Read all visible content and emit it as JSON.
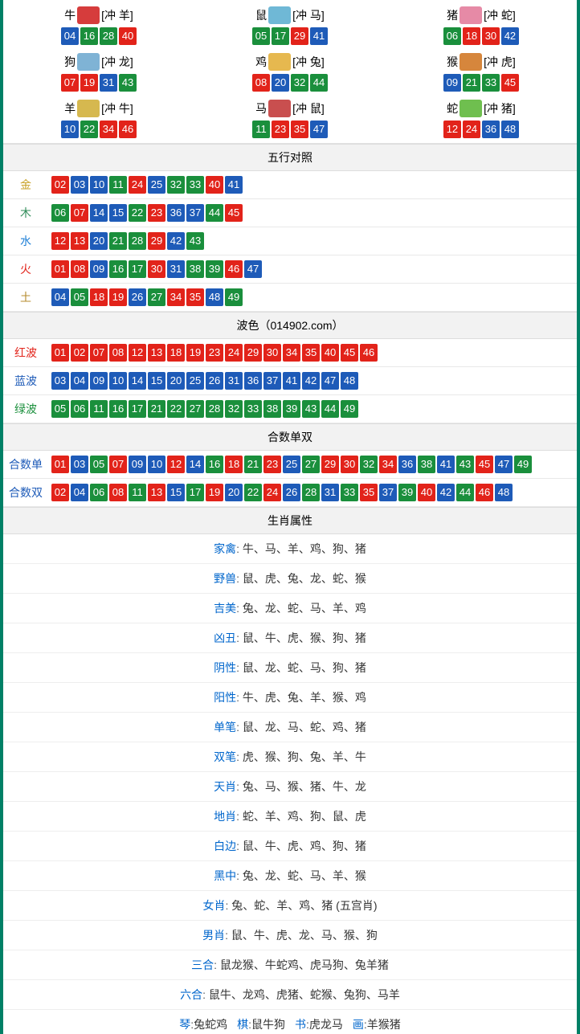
{
  "ball_colors": {
    "red": "#e2231a",
    "blue": "#1e5bb8",
    "green": "#1a8f3c"
  },
  "zodiac_icon_colors": {
    "牛": "#d63c3c",
    "鼠": "#6fb8d6",
    "猪": "#e68aa6",
    "狗": "#7fb3d5",
    "鸡": "#e6b84f",
    "猴": "#d6863c",
    "羊": "#d6b84f",
    "马": "#c94f4f",
    "蛇": "#6fbf4f"
  },
  "zodiac": [
    {
      "name": "牛",
      "conflict": "[冲 羊]",
      "balls": [
        [
          "04",
          "blue"
        ],
        [
          "16",
          "green"
        ],
        [
          "28",
          "green"
        ],
        [
          "40",
          "red"
        ]
      ]
    },
    {
      "name": "鼠",
      "conflict": "[冲 马]",
      "balls": [
        [
          "05",
          "green"
        ],
        [
          "17",
          "green"
        ],
        [
          "29",
          "red"
        ],
        [
          "41",
          "blue"
        ]
      ]
    },
    {
      "name": "猪",
      "conflict": "[冲 蛇]",
      "balls": [
        [
          "06",
          "green"
        ],
        [
          "18",
          "red"
        ],
        [
          "30",
          "red"
        ],
        [
          "42",
          "blue"
        ]
      ]
    },
    {
      "name": "狗",
      "conflict": "[冲 龙]",
      "balls": [
        [
          "07",
          "red"
        ],
        [
          "19",
          "red"
        ],
        [
          "31",
          "blue"
        ],
        [
          "43",
          "green"
        ]
      ]
    },
    {
      "name": "鸡",
      "conflict": "[冲 兔]",
      "balls": [
        [
          "08",
          "red"
        ],
        [
          "20",
          "blue"
        ],
        [
          "32",
          "green"
        ],
        [
          "44",
          "green"
        ]
      ]
    },
    {
      "name": "猴",
      "conflict": "[冲 虎]",
      "balls": [
        [
          "09",
          "blue"
        ],
        [
          "21",
          "green"
        ],
        [
          "33",
          "green"
        ],
        [
          "45",
          "red"
        ]
      ]
    },
    {
      "name": "羊",
      "conflict": "[冲 牛]",
      "balls": [
        [
          "10",
          "blue"
        ],
        [
          "22",
          "green"
        ],
        [
          "34",
          "red"
        ],
        [
          "46",
          "red"
        ]
      ]
    },
    {
      "name": "马",
      "conflict": "[冲 鼠]",
      "balls": [
        [
          "11",
          "green"
        ],
        [
          "23",
          "red"
        ],
        [
          "35",
          "red"
        ],
        [
          "47",
          "blue"
        ]
      ]
    },
    {
      "name": "蛇",
      "conflict": "[冲 猪]",
      "balls": [
        [
          "12",
          "red"
        ],
        [
          "24",
          "red"
        ],
        [
          "36",
          "blue"
        ],
        [
          "48",
          "blue"
        ]
      ]
    }
  ],
  "wuxing_header": "五行对照",
  "wuxing_label_colors": {
    "金": "#c9a227",
    "木": "#2e8b57",
    "水": "#1e7fd6",
    "火": "#e2231a",
    "土": "#b58b2e"
  },
  "wuxing": [
    {
      "label": "金",
      "balls": [
        [
          "02",
          "red"
        ],
        [
          "03",
          "blue"
        ],
        [
          "10",
          "blue"
        ],
        [
          "11",
          "green"
        ],
        [
          "24",
          "red"
        ],
        [
          "25",
          "blue"
        ],
        [
          "32",
          "green"
        ],
        [
          "33",
          "green"
        ],
        [
          "40",
          "red"
        ],
        [
          "41",
          "blue"
        ]
      ]
    },
    {
      "label": "木",
      "balls": [
        [
          "06",
          "green"
        ],
        [
          "07",
          "red"
        ],
        [
          "14",
          "blue"
        ],
        [
          "15",
          "blue"
        ],
        [
          "22",
          "green"
        ],
        [
          "23",
          "red"
        ],
        [
          "36",
          "blue"
        ],
        [
          "37",
          "blue"
        ],
        [
          "44",
          "green"
        ],
        [
          "45",
          "red"
        ]
      ]
    },
    {
      "label": "水",
      "balls": [
        [
          "12",
          "red"
        ],
        [
          "13",
          "red"
        ],
        [
          "20",
          "blue"
        ],
        [
          "21",
          "green"
        ],
        [
          "28",
          "green"
        ],
        [
          "29",
          "red"
        ],
        [
          "42",
          "blue"
        ],
        [
          "43",
          "green"
        ]
      ]
    },
    {
      "label": "火",
      "balls": [
        [
          "01",
          "red"
        ],
        [
          "08",
          "red"
        ],
        [
          "09",
          "blue"
        ],
        [
          "16",
          "green"
        ],
        [
          "17",
          "green"
        ],
        [
          "30",
          "red"
        ],
        [
          "31",
          "blue"
        ],
        [
          "38",
          "green"
        ],
        [
          "39",
          "green"
        ],
        [
          "46",
          "red"
        ],
        [
          "47",
          "blue"
        ]
      ]
    },
    {
      "label": "土",
      "balls": [
        [
          "04",
          "blue"
        ],
        [
          "05",
          "green"
        ],
        [
          "18",
          "red"
        ],
        [
          "19",
          "red"
        ],
        [
          "26",
          "blue"
        ],
        [
          "27",
          "green"
        ],
        [
          "34",
          "red"
        ],
        [
          "35",
          "red"
        ],
        [
          "48",
          "blue"
        ],
        [
          "49",
          "green"
        ]
      ]
    }
  ],
  "bose_header": "波色（014902.com）",
  "bose_label_colors": {
    "红波": "#e2231a",
    "蓝波": "#1e5bb8",
    "绿波": "#1a8f3c"
  },
  "bose": [
    {
      "label": "红波",
      "color": "red",
      "balls": [
        "01",
        "02",
        "07",
        "08",
        "12",
        "13",
        "18",
        "19",
        "23",
        "24",
        "29",
        "30",
        "34",
        "35",
        "40",
        "45",
        "46"
      ]
    },
    {
      "label": "蓝波",
      "color": "blue",
      "balls": [
        "03",
        "04",
        "09",
        "10",
        "14",
        "15",
        "20",
        "25",
        "26",
        "31",
        "36",
        "37",
        "41",
        "42",
        "47",
        "48"
      ]
    },
    {
      "label": "绿波",
      "color": "green",
      "balls": [
        "05",
        "06",
        "11",
        "16",
        "17",
        "21",
        "22",
        "27",
        "28",
        "32",
        "33",
        "38",
        "39",
        "43",
        "44",
        "49"
      ]
    }
  ],
  "heshu_header": "合数单双",
  "heshu_label_color": "#1e5bb8",
  "heshu": [
    {
      "label": "合数单",
      "balls": [
        [
          "01",
          "red"
        ],
        [
          "03",
          "blue"
        ],
        [
          "05",
          "green"
        ],
        [
          "07",
          "red"
        ],
        [
          "09",
          "blue"
        ],
        [
          "10",
          "blue"
        ],
        [
          "12",
          "red"
        ],
        [
          "14",
          "blue"
        ],
        [
          "16",
          "green"
        ],
        [
          "18",
          "red"
        ],
        [
          "21",
          "green"
        ],
        [
          "23",
          "red"
        ],
        [
          "25",
          "blue"
        ],
        [
          "27",
          "green"
        ],
        [
          "29",
          "red"
        ],
        [
          "30",
          "red"
        ],
        [
          "32",
          "green"
        ],
        [
          "34",
          "red"
        ],
        [
          "36",
          "blue"
        ],
        [
          "38",
          "green"
        ],
        [
          "41",
          "blue"
        ],
        [
          "43",
          "green"
        ],
        [
          "45",
          "red"
        ],
        [
          "47",
          "blue"
        ],
        [
          "49",
          "green"
        ]
      ]
    },
    {
      "label": "合数双",
      "balls": [
        [
          "02",
          "red"
        ],
        [
          "04",
          "blue"
        ],
        [
          "06",
          "green"
        ],
        [
          "08",
          "red"
        ],
        [
          "11",
          "green"
        ],
        [
          "13",
          "red"
        ],
        [
          "15",
          "blue"
        ],
        [
          "17",
          "green"
        ],
        [
          "19",
          "red"
        ],
        [
          "20",
          "blue"
        ],
        [
          "22",
          "green"
        ],
        [
          "24",
          "red"
        ],
        [
          "26",
          "blue"
        ],
        [
          "28",
          "green"
        ],
        [
          "31",
          "blue"
        ],
        [
          "33",
          "green"
        ],
        [
          "35",
          "red"
        ],
        [
          "37",
          "blue"
        ],
        [
          "39",
          "green"
        ],
        [
          "40",
          "red"
        ],
        [
          "42",
          "blue"
        ],
        [
          "44",
          "green"
        ],
        [
          "46",
          "red"
        ],
        [
          "48",
          "blue"
        ]
      ]
    }
  ],
  "attr_header": "生肖属性",
  "attr_sep": ": ",
  "attrs": [
    {
      "key": "家禽",
      "val": "牛、马、羊、鸡、狗、猪"
    },
    {
      "key": "野兽",
      "val": "鼠、虎、兔、龙、蛇、猴"
    },
    {
      "key": "吉美",
      "val": "兔、龙、蛇、马、羊、鸡"
    },
    {
      "key": "凶丑",
      "val": "鼠、牛、虎、猴、狗、猪"
    },
    {
      "key": "阴性",
      "val": "鼠、龙、蛇、马、狗、猪"
    },
    {
      "key": "阳性",
      "val": "牛、虎、兔、羊、猴、鸡"
    },
    {
      "key": "单笔",
      "val": "鼠、龙、马、蛇、鸡、猪"
    },
    {
      "key": "双笔",
      "val": "虎、猴、狗、兔、羊、牛"
    },
    {
      "key": "天肖",
      "val": "兔、马、猴、猪、牛、龙"
    },
    {
      "key": "地肖",
      "val": "蛇、羊、鸡、狗、鼠、虎"
    },
    {
      "key": "白边",
      "val": "鼠、牛、虎、鸡、狗、猪"
    },
    {
      "key": "黑中",
      "val": "兔、龙、蛇、马、羊、猴"
    },
    {
      "key": "女肖",
      "val": "兔、蛇、羊、鸡、猪 (五宫肖)"
    },
    {
      "key": "男肖",
      "val": "鼠、牛、虎、龙、马、猴、狗"
    },
    {
      "key": "三合",
      "val": "鼠龙猴、牛蛇鸡、虎马狗、兔羊猪"
    },
    {
      "key": "六合",
      "val": "鼠牛、龙鸡、虎猪、蛇猴、兔狗、马羊"
    }
  ],
  "bottom_sep": ":",
  "bottom": [
    {
      "key": "琴",
      "val": "兔蛇鸡"
    },
    {
      "key": "棋",
      "val": "鼠牛狗"
    },
    {
      "key": "书",
      "val": "虎龙马"
    },
    {
      "key": "画",
      "val": "羊猴猪"
    }
  ]
}
